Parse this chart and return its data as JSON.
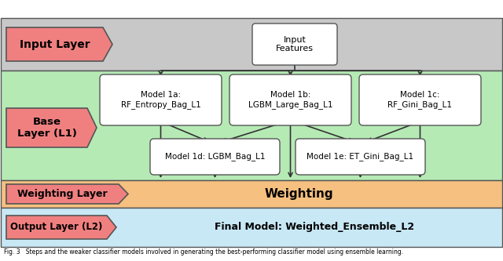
{
  "title": "Fig. 3   Steps and the weaker classifier models involved in generating the best-performing classifier model using ensemble learning.",
  "input_layer_label": "Input Layer",
  "input_features_label": "Input\nFeatures",
  "base_layer_label": "Base\nLayer (L1)",
  "weighting_layer_label": "Weighting Layer",
  "weighting_text": "Weighting",
  "output_layer_label": "Output Layer (L2)",
  "output_model_text": "Final Model: Weighted_Ensemble_L2",
  "models_top": [
    "Model 1a:\nRF_Entropy_Bag_L1",
    "Model 1b:\nLGBM_Large_Bag_L1",
    "Model 1c:\nRF_Gini_Bag_L1"
  ],
  "models_bottom": [
    "Model 1d: LGBM_Bag_L1",
    "Model 1e: ET_Gini_Bag_L1"
  ],
  "bg_input": "#c8c8c8",
  "bg_base": "#b5eab5",
  "bg_weighting": "#f5c080",
  "bg_output": "#c8e8f5",
  "salmon_shape": "#f08080",
  "white_box": "#ffffff",
  "arrow_color": "#333333",
  "layer_edge": "#888888"
}
